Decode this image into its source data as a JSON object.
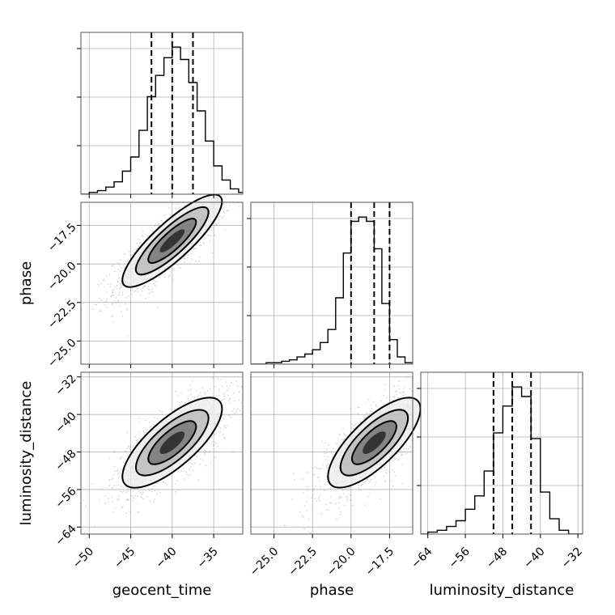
{
  "chart_data": {
    "type": "corner",
    "parameters": [
      "geocent_time",
      "phase",
      "luminosity_distance"
    ],
    "axis_labels": {
      "x": [
        "geocent_time",
        "phase",
        "luminosity_distance"
      ],
      "y": [
        "",
        "phase",
        "luminosity_distance"
      ]
    },
    "ranges": {
      "geocent_time": [
        -51,
        -31.5
      ],
      "phase": [
        -26.5,
        -16.0
      ],
      "luminosity_distance": [
        -65.5,
        -31.0
      ]
    },
    "ticks": {
      "geocent_time": {
        "values": [
          -50,
          -45,
          -40,
          -35
        ],
        "labels": [
          "−50",
          "−45",
          "−40",
          "−35"
        ]
      },
      "phase": {
        "values": [
          -25.0,
          -22.5,
          -20.0,
          -17.5
        ],
        "labels": [
          "−25.0",
          "−22.5",
          "−20.0",
          "−17.5"
        ]
      },
      "luminosity_distance": {
        "values": [
          -64,
          -56,
          -48,
          -40,
          -32
        ],
        "labels": [
          "−64",
          "−56",
          "−48",
          "−40",
          "−32"
        ]
      }
    },
    "quantiles": {
      "geocent_time": [
        -42.5,
        -40.0,
        -37.5
      ],
      "phase": [
        -20.0,
        -18.5,
        -17.5
      ],
      "luminosity_distance": [
        -50.0,
        -46.0,
        -42.0
      ]
    },
    "histograms": {
      "geocent_time": {
        "edges": [
          -51,
          -50,
          -49,
          -48,
          -47,
          -46,
          -45,
          -44,
          -43,
          -42,
          -41,
          -40,
          -39,
          -38,
          -37,
          -36,
          -35,
          -34,
          -33,
          -32,
          -31.5
        ],
        "counts": [
          0,
          1,
          2,
          4,
          7,
          13,
          21,
          36,
          55,
          67,
          77,
          83,
          76,
          63,
          47,
          30,
          16,
          8,
          3,
          1
        ]
      },
      "phase": {
        "edges": [
          -26.5,
          -26.0,
          -25.5,
          -25.0,
          -24.5,
          -24.0,
          -23.5,
          -23.0,
          -22.5,
          -22.0,
          -21.5,
          -21.0,
          -20.5,
          -20.0,
          -19.5,
          -19.0,
          -18.5,
          -18.0,
          -17.5,
          -17.0,
          -16.5,
          -16.0
        ],
        "counts": [
          0,
          0,
          1,
          1,
          2,
          3,
          5,
          7,
          10,
          15,
          24,
          46,
          77,
          99,
          102,
          99,
          80,
          42,
          17,
          5,
          1
        ]
      },
      "luminosity_distance": {
        "edges": [
          -65.5,
          -64,
          -62,
          -60,
          -58,
          -56,
          -54,
          -52,
          -50,
          -48,
          -46,
          -44,
          -42,
          -40,
          -38,
          -36,
          -34,
          -31
        ],
        "counts": [
          0,
          1,
          2,
          4,
          7,
          13,
          20,
          33,
          53,
          67,
          77,
          72,
          50,
          22,
          8,
          2,
          0
        ]
      }
    },
    "correlations": {
      "phase|geocent_time": 0.85,
      "luminosity_distance|geocent_time": 0.75,
      "luminosity_distance|phase": 0.75
    },
    "grid": true
  }
}
